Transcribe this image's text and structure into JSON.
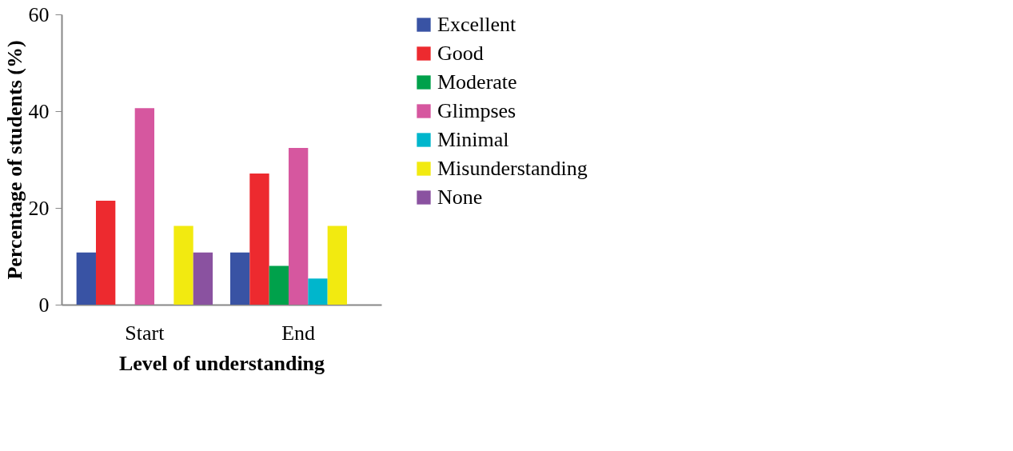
{
  "chart_data": {
    "type": "bar",
    "xlabel": "Level of understanding",
    "ylabel": "Percentage of students (%)",
    "categories": [
      "Start",
      "End"
    ],
    "series": [
      {
        "name": "Excellent",
        "color": "#3953a4",
        "values": [
          10.8,
          10.8
        ]
      },
      {
        "name": "Good",
        "color": "#ed2a2f",
        "values": [
          21.5,
          27.1
        ]
      },
      {
        "name": "Moderate",
        "color": "#00a14b",
        "values": [
          0,
          8.0
        ]
      },
      {
        "name": "Glimpses",
        "color": "#d6579f",
        "values": [
          40.6,
          32.4
        ]
      },
      {
        "name": "Minimal",
        "color": "#00b6cc",
        "values": [
          0,
          5.4
        ]
      },
      {
        "name": "Misunderstanding",
        "color": "#f2ea10",
        "values": [
          16.3,
          16.3
        ]
      },
      {
        "name": "None",
        "color": "#8a52a0",
        "values": [
          10.8,
          0
        ]
      }
    ],
    "ylim": [
      0,
      60
    ],
    "yticks": [
      0,
      20,
      40,
      60
    ],
    "grid": false,
    "legend": "right"
  }
}
